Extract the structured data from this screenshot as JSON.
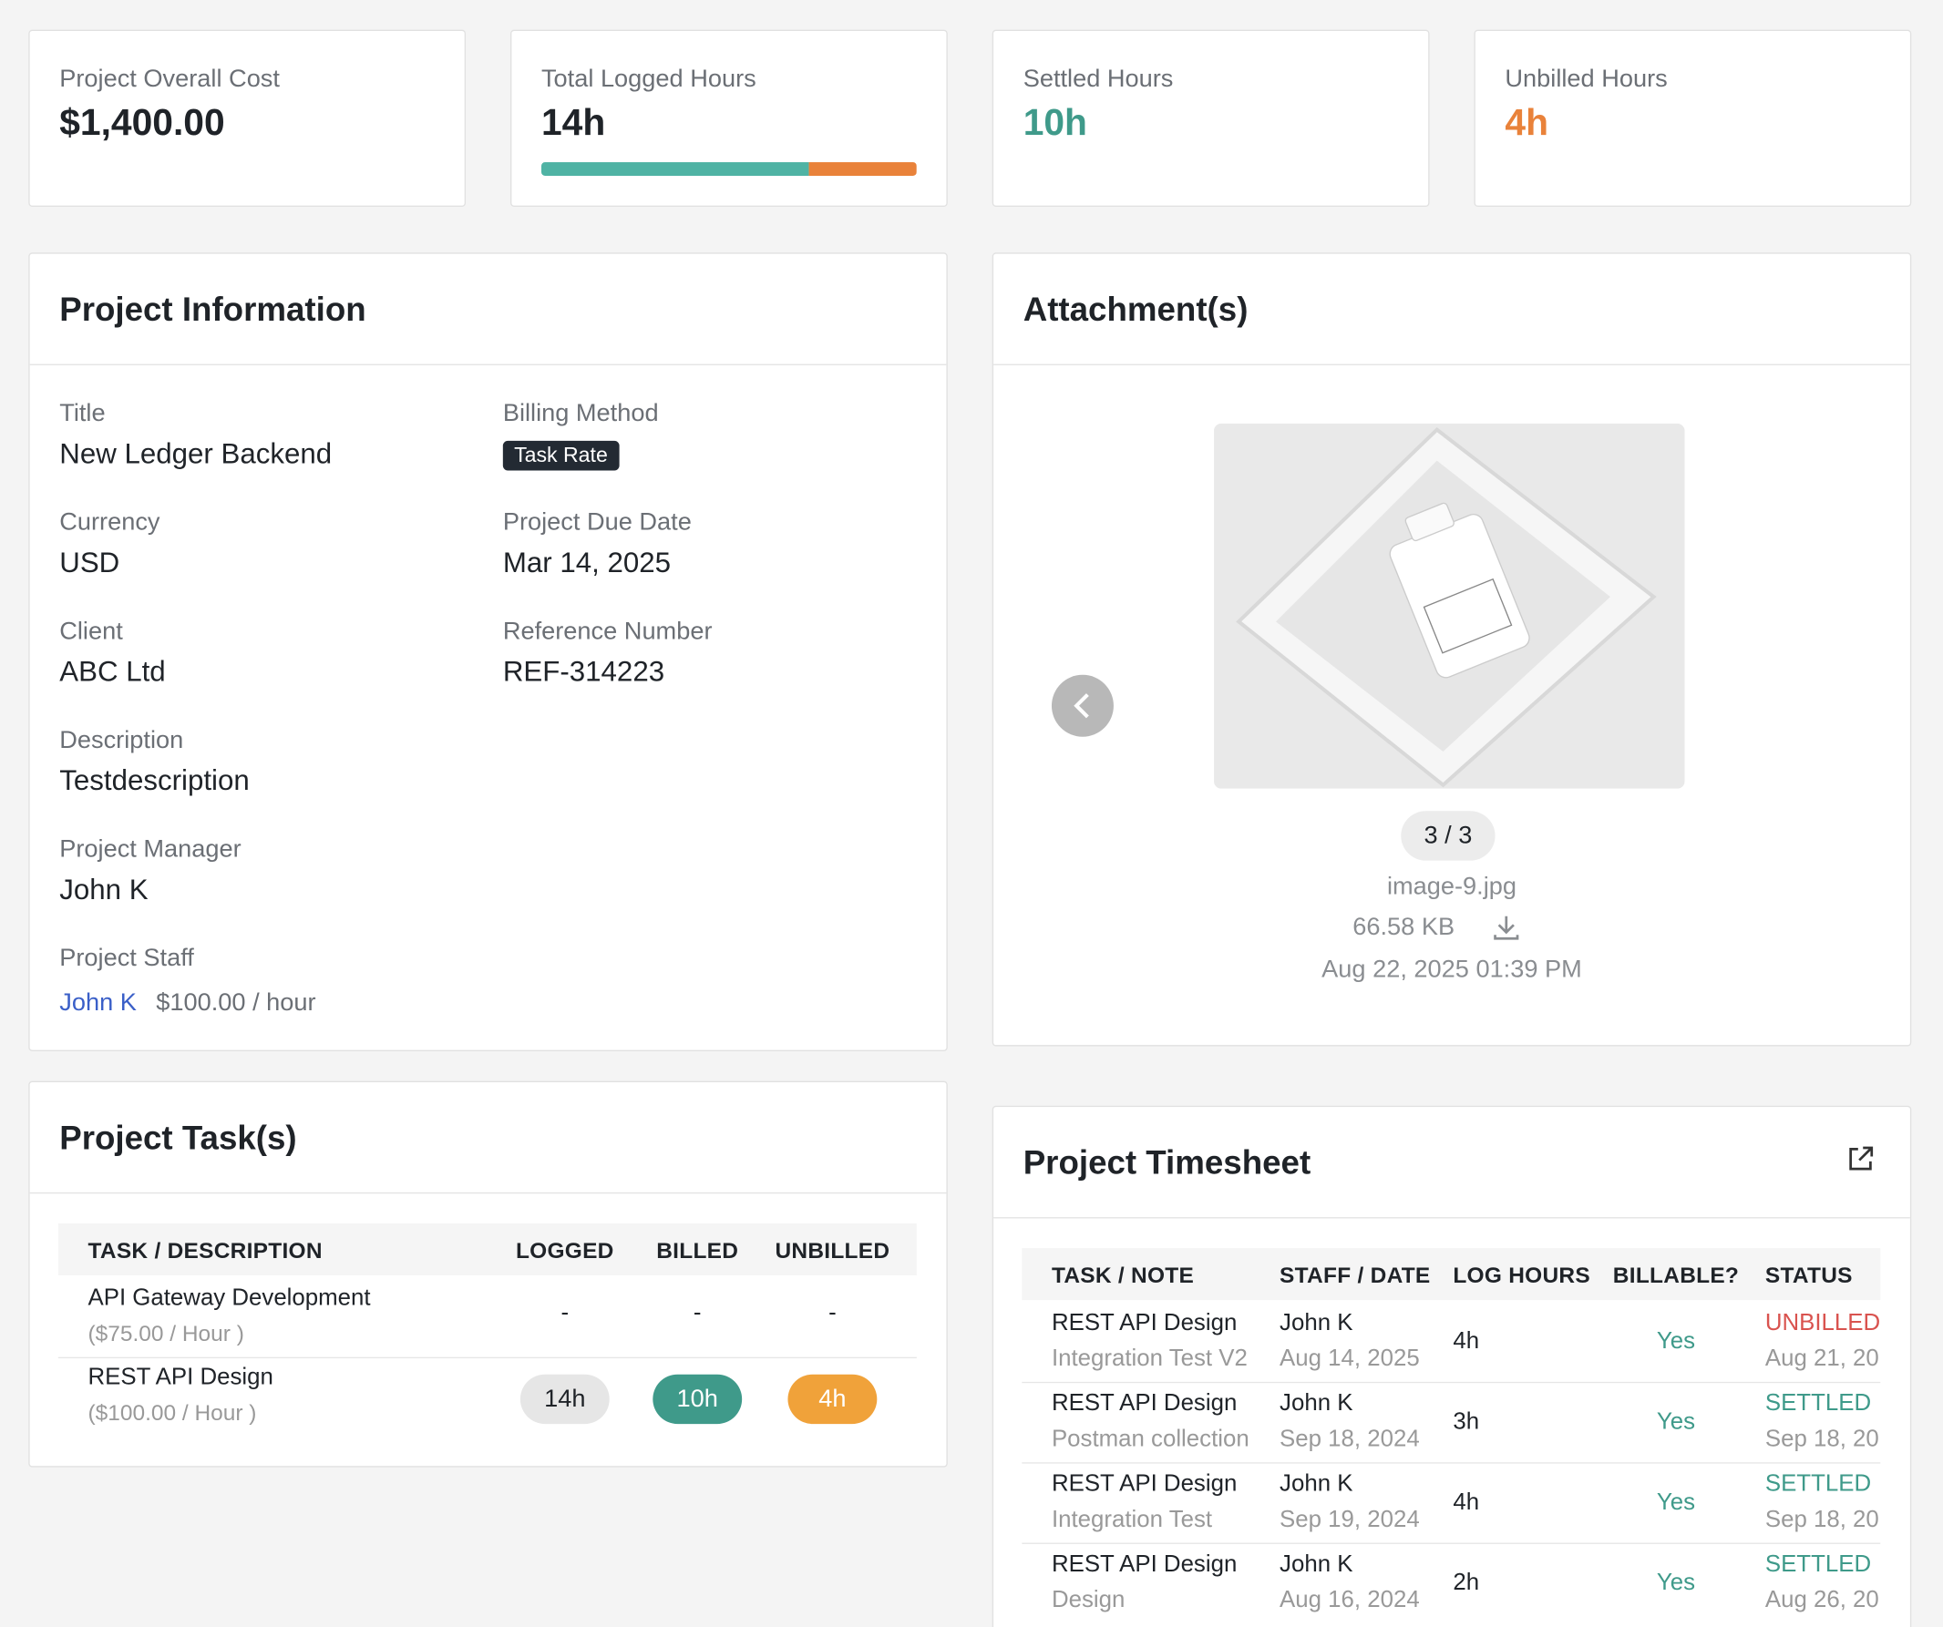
{
  "stats": [
    {
      "label": "Project Overall Cost",
      "value": "$1,400.00"
    },
    {
      "label": "Total Logged Hours",
      "value": "14h"
    },
    {
      "label": "Settled Hours",
      "value": "10h"
    },
    {
      "label": "Unbilled Hours",
      "value": "4h"
    }
  ],
  "hours_bar": {
    "settled": 10,
    "unbilled": 4
  },
  "project_info": {
    "title": "Project Information",
    "left": [
      {
        "label": "Title",
        "value": "New Ledger Backend"
      },
      {
        "label": "Currency",
        "value": "USD"
      },
      {
        "label": "Client",
        "value": "ABC Ltd"
      },
      {
        "label": "Description",
        "value": "Testdescription"
      },
      {
        "label": "Project Manager",
        "value": "John K"
      }
    ],
    "right": [
      {
        "label": "Billing Method",
        "value": "Task Rate"
      },
      {
        "label": "Project Due Date",
        "value": "Mar 14, 2025"
      },
      {
        "label": "Reference Number",
        "value": "REF-314223"
      }
    ],
    "staff_label": "Project Staff",
    "staff": {
      "name": "John K",
      "rate": "$100.00 / hour"
    }
  },
  "attachments": {
    "title": "Attachment(s)",
    "counter": "3 / 3",
    "filename": "image-9.jpg",
    "size": "66.58 KB",
    "date": "Aug 22, 2025 01:39 PM"
  },
  "tasks": {
    "title": "Project Task(s)",
    "columns": [
      "TASK / DESCRIPTION",
      "LOGGED",
      "BILLED",
      "UNBILLED"
    ],
    "rows": [
      {
        "task": "API Gateway Development",
        "rate": "($75.00 / Hour )",
        "logged": "-",
        "billed": "-",
        "unbilled": "-"
      },
      {
        "task": "REST API Design",
        "rate": "($100.00 / Hour )",
        "logged": "14h",
        "billed": "10h",
        "unbilled": "4h"
      }
    ]
  },
  "timesheet": {
    "title": "Project Timesheet",
    "columns": [
      "TASK / NOTE",
      "STAFF / DATE",
      "LOG HOURS",
      "BILLABLE?",
      "STATUS"
    ],
    "rows": [
      {
        "task": "REST API Design",
        "note": "Integration Test V2",
        "staff": "John K",
        "date": "Aug 14, 2025",
        "hours": "4h",
        "billable": "Yes",
        "status": "UNBILLED",
        "status_date": "Aug 21, 20"
      },
      {
        "task": "REST API Design",
        "note": "Postman collection",
        "staff": "John K",
        "date": "Sep 18, 2024",
        "hours": "3h",
        "billable": "Yes",
        "status": "SETTLED",
        "status_date": "Sep 18, 20"
      },
      {
        "task": "REST API Design",
        "note": "Integration Test",
        "staff": "John K",
        "date": "Sep 19, 2024",
        "hours": "4h",
        "billable": "Yes",
        "status": "SETTLED",
        "status_date": "Sep 18, 20"
      },
      {
        "task": "REST API Design",
        "note": "Design",
        "staff": "John K",
        "date": "Aug 16, 2024",
        "hours": "2h",
        "billable": "Yes",
        "status": "SETTLED",
        "status_date": "Aug 26, 20"
      }
    ]
  }
}
